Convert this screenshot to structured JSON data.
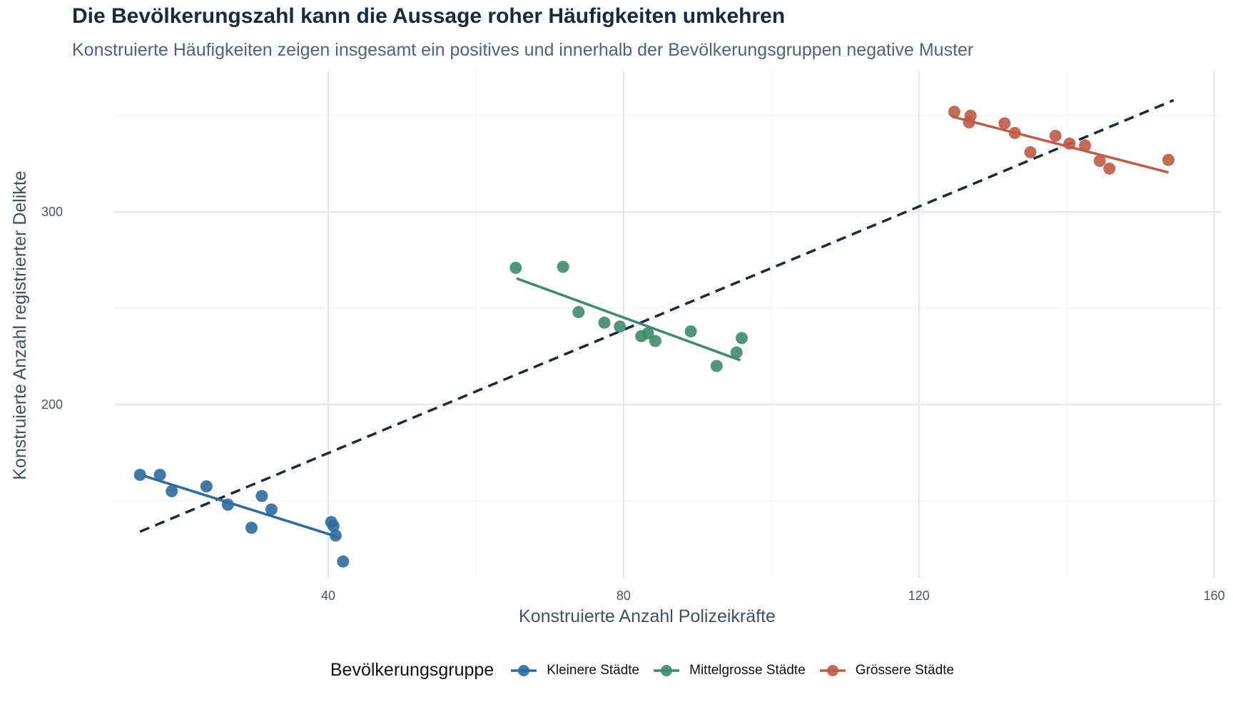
{
  "chart_data": {
    "type": "scatter",
    "title": "Die Bevölkerungszahl kann die Aussage roher Häufigkeiten umkehren",
    "subtitle": "Konstruierte Häufigkeiten zeigen insgesamt ein positives und innerhalb der Bevölkerungsgruppen negative Muster",
    "xlabel": "Konstruierte Anzahl Polizeikräfte",
    "ylabel": "Konstruierte Anzahl registrierter Delikte",
    "xlim": [
      11,
      161
    ],
    "ylim": [
      110,
      373
    ],
    "x_ticks": [
      40,
      80,
      120,
      160
    ],
    "y_ticks": [
      200,
      300
    ],
    "grid": true,
    "legend_title": "Bevölkerungsgruppe",
    "legend_position": "bottom",
    "overall_trend": {
      "style": "dashed",
      "color": "#1b2a38",
      "x": [
        14.5,
        154.5
      ],
      "y": [
        134,
        358
      ]
    },
    "series": [
      {
        "name": "Kleinere Städte",
        "color": "#2f6a9e",
        "points": [
          [
            14.5,
            163.5
          ],
          [
            17.2,
            163.5
          ],
          [
            18.8,
            155
          ],
          [
            23.5,
            157.5
          ],
          [
            26.4,
            148
          ],
          [
            29.6,
            136
          ],
          [
            31,
            152.5
          ],
          [
            32.3,
            145.5
          ],
          [
            40.4,
            139
          ],
          [
            40.7,
            137
          ],
          [
            41,
            132
          ],
          [
            42,
            118.5
          ]
        ],
        "trend": {
          "x": [
            15,
            41.5
          ],
          "y": [
            163,
            131
          ]
        }
      },
      {
        "name": "Mittelgrosse Städte",
        "color": "#3e8a6d",
        "points": [
          [
            65.4,
            271
          ],
          [
            71.8,
            271.5
          ],
          [
            73.9,
            248
          ],
          [
            77.4,
            242.5
          ],
          [
            79.5,
            240.5
          ],
          [
            82.4,
            235.5
          ],
          [
            83.3,
            237
          ],
          [
            84.3,
            233
          ],
          [
            89.1,
            238
          ],
          [
            92.6,
            220
          ],
          [
            95.3,
            227
          ],
          [
            96,
            234.5
          ]
        ],
        "trend": {
          "x": [
            65.5,
            95.8
          ],
          "y": [
            265.5,
            223
          ]
        }
      },
      {
        "name": "Grössere Städte",
        "color": "#c05a46",
        "points": [
          [
            124.8,
            352
          ],
          [
            126.8,
            346.5
          ],
          [
            127,
            350
          ],
          [
            131.6,
            346
          ],
          [
            133,
            341
          ],
          [
            135.1,
            331
          ],
          [
            138.5,
            339.5
          ],
          [
            140.4,
            335.5
          ],
          [
            142.5,
            334.5
          ],
          [
            144.5,
            326.5
          ],
          [
            145.8,
            322.5
          ],
          [
            153.8,
            327
          ]
        ],
        "trend": {
          "x": [
            124.5,
            153.8
          ],
          "y": [
            349.5,
            320.5
          ]
        }
      }
    ]
  }
}
